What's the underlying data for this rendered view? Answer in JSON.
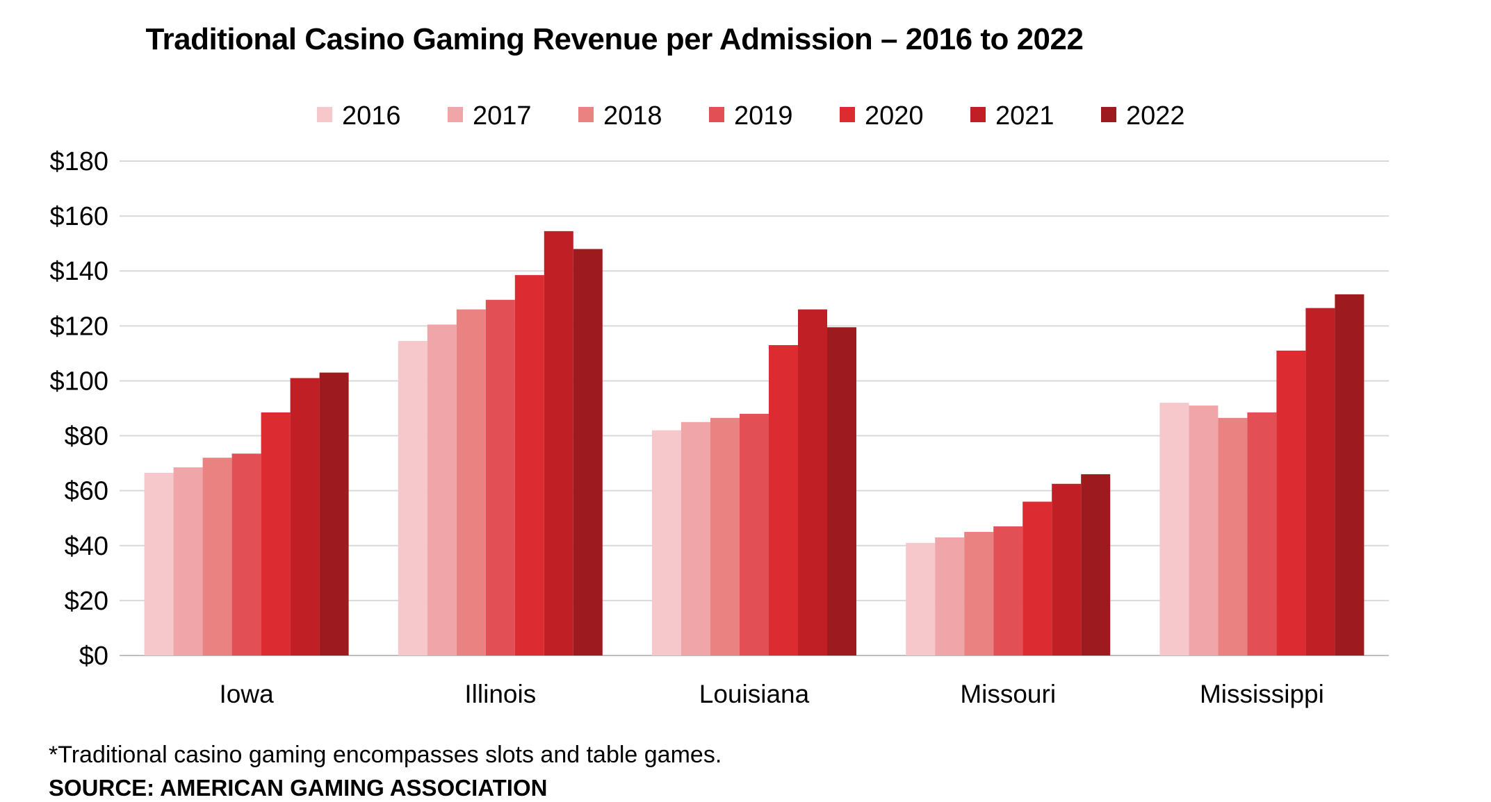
{
  "chart_data": {
    "type": "bar",
    "title": "Traditional Casino Gaming Revenue per Admission – 2016 to 2022",
    "categories": [
      "Iowa",
      "Illinois",
      "Louisiana",
      "Missouri",
      "Mississippi"
    ],
    "series": [
      {
        "name": "2016",
        "color": "#f6c8cb",
        "values": [
          66.5,
          114.5,
          82.0,
          41.0,
          92.0
        ]
      },
      {
        "name": "2017",
        "color": "#f0a6a9",
        "values": [
          68.5,
          120.5,
          85.0,
          43.0,
          91.0
        ]
      },
      {
        "name": "2018",
        "color": "#ea8282",
        "values": [
          72.0,
          126.0,
          86.5,
          45.0,
          86.5
        ]
      },
      {
        "name": "2019",
        "color": "#e25055",
        "values": [
          73.5,
          129.5,
          88.0,
          47.0,
          88.5
        ]
      },
      {
        "name": "2020",
        "color": "#dd2b32",
        "values": [
          88.5,
          138.5,
          113.0,
          56.0,
          111.0
        ]
      },
      {
        "name": "2021",
        "color": "#c01f26",
        "values": [
          101.0,
          154.5,
          126.0,
          62.5,
          126.5
        ]
      },
      {
        "name": "2022",
        "color": "#9d1a1f",
        "values": [
          103.0,
          148.0,
          119.5,
          66.0,
          131.5
        ]
      }
    ],
    "y_ticks": [
      "$0",
      "$20",
      "$40",
      "$60",
      "$80",
      "$100",
      "$120",
      "$140",
      "$160",
      "$180"
    ],
    "ylim": [
      0,
      180
    ],
    "grid": true,
    "legend_position": "top-center",
    "footnote": "*Traditional casino gaming encompasses slots and table games.",
    "source": "SOURCE: AMERICAN GAMING ASSOCIATION",
    "colors": {
      "grid": "#d9d9d9",
      "axis": "#bfbfbf",
      "text": "#000000"
    }
  }
}
